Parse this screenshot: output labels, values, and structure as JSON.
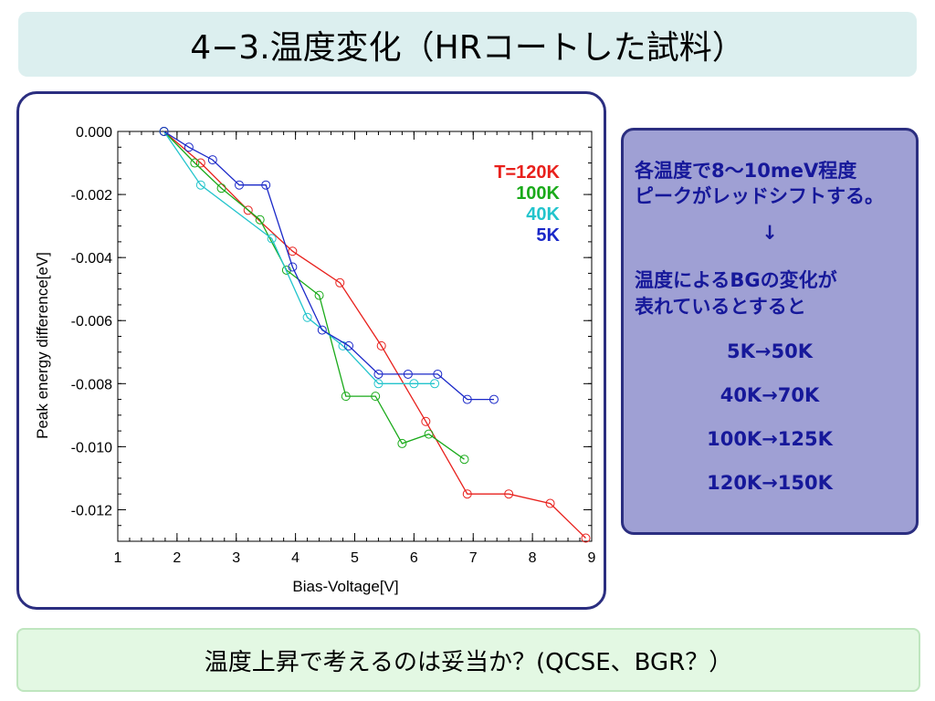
{
  "title": "4−3.温度変化（HRコートした試料）",
  "footer": "温度上昇で考えるのは妥当か？(QCSE、BGR？）",
  "info": {
    "line1": "各温度で8～10meV程度",
    "line2": "ピークがレッドシフトする。",
    "arrow": "↓",
    "line3": "温度によるBGの変化が",
    "line4": "表れているとすると",
    "map1": "5K→50K",
    "map2": "40K→70K",
    "map3": "100K→125K",
    "map4": "120K→150K"
  },
  "chart_data": {
    "type": "line",
    "xlabel": "Bias-Voltage[V]",
    "ylabel": "Peak energy difference[eV]",
    "xlim": [
      1,
      9
    ],
    "ylim": [
      -0.013,
      0.0
    ],
    "xticks": [
      1,
      2,
      3,
      4,
      5,
      6,
      7,
      8,
      9
    ],
    "yticks": [
      0.0,
      -0.002,
      -0.004,
      -0.006,
      -0.008,
      -0.01,
      -0.012
    ],
    "ytick_labels": [
      "0.000",
      "-0.002",
      "-0.004",
      "-0.006",
      "-0.008",
      "-0.010",
      "-0.012"
    ],
    "xtick_labels": [
      "1",
      "2",
      "3",
      "4",
      "5",
      "6",
      "7",
      "8",
      "9"
    ],
    "grid": false,
    "legend_position": "top-right",
    "series": [
      {
        "name": "T=120K",
        "color": "#e8201c",
        "x": [
          1.78,
          2.4,
          3.2,
          3.95,
          4.75,
          5.45,
          6.2,
          6.9,
          7.6,
          8.3,
          8.9
        ],
        "y": [
          0.0,
          -0.001,
          -0.0025,
          -0.0038,
          -0.0048,
          -0.0068,
          -0.0092,
          -0.0115,
          -0.0115,
          -0.0118,
          -0.0129
        ]
      },
      {
        "name": "100K",
        "color": "#1aaa1a",
        "x": [
          1.78,
          2.3,
          2.75,
          3.4,
          3.85,
          4.4,
          4.85,
          5.35,
          5.8,
          6.25,
          6.85
        ],
        "y": [
          0.0,
          -0.001,
          -0.0018,
          -0.0028,
          -0.0044,
          -0.0052,
          -0.0084,
          -0.0084,
          -0.0099,
          -0.0096,
          -0.0104
        ]
      },
      {
        "name": "40K",
        "color": "#22c4cc",
        "x": [
          1.78,
          2.4,
          3.6,
          4.2,
          4.8,
          5.4,
          6.0,
          6.35
        ],
        "y": [
          0.0,
          -0.0017,
          -0.0034,
          -0.0059,
          -0.0068,
          -0.008,
          -0.008,
          -0.008
        ]
      },
      {
        "name": "5K",
        "color": "#1a28c8",
        "x": [
          1.78,
          2.2,
          2.6,
          3.05,
          3.5,
          3.95,
          4.45,
          4.9,
          5.4,
          5.9,
          6.4,
          6.9,
          7.35
        ],
        "y": [
          0.0,
          -0.0005,
          -0.0009,
          -0.0017,
          -0.0017,
          -0.0043,
          -0.0063,
          -0.0068,
          -0.0077,
          -0.0077,
          -0.0077,
          -0.0085,
          -0.0085
        ]
      }
    ]
  }
}
